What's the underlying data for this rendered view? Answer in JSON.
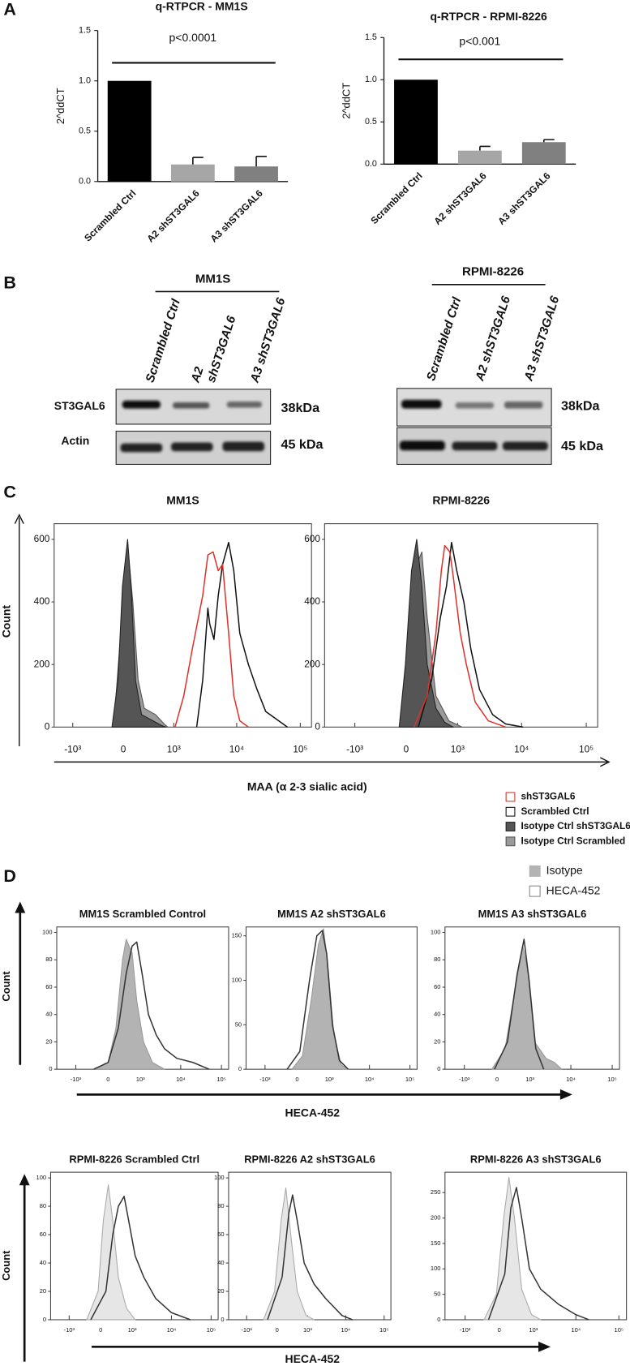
{
  "panel_labels": [
    "A",
    "B",
    "C",
    "D"
  ],
  "chart_data": [
    {
      "type": "bar",
      "title": "q-RTPCR -  MM1S",
      "y_label": "2^ddCT",
      "annotation": "p<0.0001",
      "categories": [
        "Scrambled Ctrl",
        "A2 shST3GAL6",
        "A3 shST3GAL6"
      ],
      "values": [
        1.0,
        0.17,
        0.15
      ],
      "errors": [
        0,
        0.07,
        0.1
      ],
      "colors": [
        "#000000",
        "#a6a6a6",
        "#808080"
      ],
      "ylim": [
        0,
        1.5
      ],
      "yticks": [
        {
          "value": 0,
          "label": "0.0"
        },
        0.5,
        {
          "value": 1,
          "label": "1.0"
        },
        1.5
      ]
    },
    {
      "type": "bar",
      "title": "q-RTPCR -  RPMI-8226",
      "y_label": "2^ddCT",
      "annotation": "p<0.001",
      "categories": [
        "Scrambled Ctrl",
        "A2 shST3GAL6",
        "A3 shST3GAL6"
      ],
      "values": [
        1.0,
        0.16,
        0.26
      ],
      "errors": [
        0,
        0.05,
        0.03
      ],
      "colors": [
        "#000000",
        "#a6a6a6",
        "#808080"
      ],
      "ylim": [
        0,
        1.5
      ],
      "yticks": [
        {
          "value": 0,
          "label": "0.0"
        },
        0.5,
        {
          "value": 1,
          "label": "1.0"
        },
        1.5
      ]
    },
    {
      "type": "line",
      "title": "MM1S",
      "xscale": "biexponential",
      "xlim": [
        -2000,
        150000
      ],
      "ylim": [
        0,
        650
      ],
      "xticks": [
        {
          "value": -1000,
          "label": "-10³"
        },
        0,
        {
          "value": 1000,
          "label": "10³"
        },
        {
          "value": 10000,
          "label": "10⁴"
        },
        {
          "value": 100000,
          "label": "10⁵"
        }
      ],
      "yticks": [
        0,
        200,
        400,
        600
      ],
      "series": [
        {
          "name": "shST3GAL6",
          "color": "#e0302a",
          "fill": null,
          "x": [
            1050,
            1455,
            1996,
            2920,
            3520,
            4250,
            5130,
            6000,
            7460,
            9000,
            11200,
            15300
          ],
          "values": [
            0,
            100,
            250,
            420,
            550,
            560,
            500,
            520,
            300,
            100,
            20,
            0
          ]
        },
        {
          "name": "Scrambled Ctrl",
          "color": "#111111",
          "fill": null,
          "x": [
            2340,
            2920,
            3520,
            3755,
            4385,
            5130,
            6000,
            7460,
            9000,
            11200,
            15300,
            20900,
            28600,
            45700,
            62700
          ],
          "values": [
            0,
            150,
            380,
            330,
            280,
            420,
            520,
            590,
            500,
            300,
            200,
            120,
            50,
            20,
            0
          ]
        },
        {
          "name": "Isotype Ctrl shST3GAL6",
          "color": "#222222",
          "fill": "#555555",
          "x": [
            -139,
            -63,
            -10,
            52,
            95,
            151,
            235,
            428,
            617,
            740
          ],
          "values": [
            0,
            150,
            450,
            600,
            450,
            150,
            40,
            20,
            5,
            0
          ]
        },
        {
          "name": "Isotype Ctrl Scrambled",
          "color": "#555555",
          "fill": "#9a9a9a",
          "x": [
            -117,
            -31,
            52,
            117,
            186,
            275,
            479,
            689,
            791
          ],
          "values": [
            0,
            300,
            580,
            400,
            150,
            60,
            40,
            10,
            0
          ]
        }
      ]
    },
    {
      "type": "line",
      "title": "RPMI-8226",
      "xscale": "biexponential",
      "xlim": [
        -3000,
        150000
      ],
      "ylim": [
        0,
        650
      ],
      "xticks": [
        {
          "value": -1000,
          "label": "-10³"
        },
        0,
        {
          "value": 1000,
          "label": "10³"
        },
        {
          "value": 10000,
          "label": "10⁴"
        },
        {
          "value": 100000,
          "label": "10⁵"
        }
      ],
      "yticks": [
        0,
        200,
        400,
        600
      ],
      "series": [
        {
          "name": "shST3GAL6",
          "color": "#e0302a",
          "fill": null,
          "x": [
            93,
            270,
            418,
            528,
            607,
            743,
            851,
            1105,
            1386,
            1904,
            3049,
            5676
          ],
          "values": [
            0,
            100,
            300,
            500,
            580,
            560,
            480,
            300,
            200,
            80,
            20,
            0
          ]
        },
        {
          "name": "Scrambled Ctrl",
          "color": "#111111",
          "fill": null,
          "x": [
            148,
            340,
            508,
            653,
            795,
            970,
            1260,
            1627,
            2231,
            3564,
            5676,
            10560
          ],
          "values": [
            0,
            150,
            350,
            450,
            590,
            500,
            400,
            250,
            120,
            40,
            10,
            0
          ]
        },
        {
          "name": "Isotype Ctrl shST3GAL6",
          "color": "#222222",
          "fill": "#555555",
          "x": [
            -83,
            -10,
            62,
            126,
            194,
            270,
            418,
            607,
            851
          ],
          "values": [
            0,
            200,
            500,
            600,
            450,
            200,
            60,
            15,
            0
          ]
        },
        {
          "name": "Isotype Ctrl Scrambled",
          "color": "#555555",
          "fill": "#9a9a9a",
          "x": [
            -41,
            41,
            126,
            194,
            270,
            418,
            719,
            1181
          ],
          "values": [
            0,
            250,
            520,
            560,
            350,
            100,
            20,
            0
          ]
        }
      ]
    },
    {
      "type": "line",
      "title": "MM1S Scrambled Control",
      "xscale": "biexponential",
      "xlim": [
        -3000,
        150000
      ],
      "ylim": [
        0,
        104
      ],
      "xticks": [
        {
          "value": -1000,
          "label": "-10³"
        },
        0,
        {
          "value": 1000,
          "label": "10³"
        },
        {
          "value": 10000,
          "label": "10⁴"
        },
        {
          "value": 100000,
          "label": "10⁵"
        }
      ],
      "yticks": [
        0,
        20,
        40,
        60,
        80,
        100
      ],
      "series": [
        {
          "name": "Isotype",
          "color": "#999999",
          "fill": "#b3b3b3",
          "x": [
            -300,
            0,
            150,
            300,
            400,
            600,
            800,
            1200,
            2000,
            4000
          ],
          "values": [
            0,
            5,
            30,
            80,
            95,
            85,
            50,
            20,
            5,
            0
          ]
        },
        {
          "name": "HECA-452",
          "color": "#333333",
          "fill": null,
          "x": [
            -300,
            0,
            200,
            400,
            600,
            800,
            1100,
            1600,
            2500,
            4000,
            8000,
            20000,
            50000
          ],
          "values": [
            0,
            5,
            30,
            70,
            90,
            93,
            70,
            40,
            25,
            15,
            8,
            5,
            0
          ]
        }
      ]
    },
    {
      "type": "line",
      "title": "MM1S A2 shST3GAL6",
      "xscale": "biexponential",
      "xlim": [
        -3000,
        150000
      ],
      "ylim": [
        0,
        160
      ],
      "xticks": [
        {
          "value": -1000,
          "label": "-10³"
        },
        0,
        {
          "value": 1000,
          "label": "10³"
        },
        {
          "value": 10000,
          "label": "10⁴"
        },
        {
          "value": 100000,
          "label": "10⁵"
        }
      ],
      "yticks": [
        0,
        50,
        100,
        150
      ],
      "series": [
        {
          "name": "Isotype",
          "color": "#999999",
          "fill": "#b3b3b3",
          "x": [
            -100,
            100,
            300,
            500,
            700,
            900,
            1300,
            2000,
            3000
          ],
          "values": [
            0,
            15,
            80,
            140,
            158,
            120,
            40,
            5,
            0
          ]
        },
        {
          "name": "HECA-452",
          "color": "#333333",
          "fill": null,
          "x": [
            -200,
            50,
            250,
            450,
            650,
            850,
            1200,
            1800,
            3000
          ],
          "values": [
            0,
            20,
            100,
            150,
            156,
            130,
            50,
            10,
            0
          ]
        }
      ]
    },
    {
      "type": "line",
      "title": "MM1S A3 shST3GAL6",
      "xscale": "biexponential",
      "xlim": [
        -3000,
        150000
      ],
      "ylim": [
        0,
        104
      ],
      "xticks": [
        {
          "value": -1000,
          "label": "-10³"
        },
        0,
        {
          "value": 1000,
          "label": "10³"
        },
        {
          "value": 10000,
          "label": "10⁴"
        },
        {
          "value": 100000,
          "label": "10⁵"
        }
      ],
      "yticks": [
        0,
        20,
        40,
        60,
        80,
        100
      ],
      "series": [
        {
          "name": "Isotype",
          "color": "#999999",
          "fill": "#b3b3b3",
          "x": [
            -100,
            150,
            400,
            650,
            900,
            1300,
            2500,
            4000,
            6000
          ],
          "values": [
            0,
            15,
            60,
            90,
            70,
            20,
            8,
            5,
            0
          ]
        },
        {
          "name": "HECA-452",
          "color": "#333333",
          "fill": null,
          "x": [
            -50,
            200,
            450,
            700,
            950,
            1400,
            2200
          ],
          "values": [
            0,
            20,
            70,
            95,
            65,
            15,
            0
          ]
        }
      ]
    },
    {
      "type": "line",
      "title": "RPMI-8226 Scrambled Ctrl",
      "xscale": "biexponential",
      "xlim": [
        -3000,
        150000
      ],
      "ylim": [
        0,
        104
      ],
      "xticks": [
        {
          "value": -1000,
          "label": "-10³"
        },
        0,
        {
          "value": 1000,
          "label": "10³"
        },
        {
          "value": 10000,
          "label": "10⁴"
        },
        {
          "value": 100000,
          "label": "10⁵"
        }
      ],
      "yticks": [
        0,
        20,
        40,
        60,
        80,
        100
      ],
      "series": [
        {
          "name": "Isotype",
          "color": "#aaaaaa",
          "fill": "#e6e6e6",
          "x": [
            -300,
            -50,
            50,
            150,
            250,
            400,
            700,
            1200
          ],
          "values": [
            0,
            20,
            70,
            95,
            70,
            30,
            8,
            0
          ]
        },
        {
          "name": "HECA-452",
          "color": "#333333",
          "fill": null,
          "x": [
            -200,
            100,
            250,
            400,
            600,
            800,
            1200,
            2000,
            4000,
            10000,
            30000
          ],
          "values": [
            0,
            20,
            60,
            80,
            87,
            70,
            45,
            30,
            15,
            5,
            0
          ]
        }
      ]
    },
    {
      "type": "line",
      "title": "RPMI-8226 A2 shST3GAL6",
      "xscale": "biexponential",
      "xlim": [
        -3000,
        150000
      ],
      "ylim": [
        0,
        104
      ],
      "xticks": [
        {
          "value": -1000,
          "label": "-10³"
        },
        0,
        {
          "value": 1000,
          "label": "10³"
        },
        {
          "value": 10000,
          "label": "10⁴"
        },
        {
          "value": 100000,
          "label": "10⁵"
        }
      ],
      "yticks": [
        0,
        20,
        40,
        60,
        80,
        100
      ],
      "series": [
        {
          "name": "Isotype",
          "color": "#aaaaaa",
          "fill": "#e6e6e6",
          "x": [
            -300,
            -50,
            80,
            180,
            300,
            500,
            900,
            1500
          ],
          "values": [
            0,
            20,
            70,
            93,
            60,
            20,
            3,
            0
          ]
        },
        {
          "name": "HECA-452",
          "color": "#333333",
          "fill": null,
          "x": [
            -200,
            100,
            250,
            350,
            500,
            800,
            1500,
            3000,
            8000,
            15000
          ],
          "values": [
            0,
            30,
            75,
            88,
            70,
            40,
            25,
            15,
            3,
            0
          ]
        }
      ]
    },
    {
      "type": "line",
      "title": "RPMI-8226 A3 shST3GAL6",
      "xscale": "biexponential",
      "xlim": [
        -3000,
        150000
      ],
      "ylim": [
        0,
        290
      ],
      "xticks": [
        {
          "value": -1000,
          "label": "-10³"
        },
        0,
        {
          "value": 1000,
          "label": "10³"
        },
        {
          "value": 10000,
          "label": "10⁴"
        },
        {
          "value": 100000,
          "label": "10⁵"
        }
      ],
      "yticks": [
        0,
        50,
        100,
        150,
        200,
        250
      ],
      "series": [
        {
          "name": "Isotype",
          "color": "#aaaaaa",
          "fill": "#e6e6e6",
          "x": [
            -300,
            -50,
            80,
            180,
            300,
            500,
            900,
            1500
          ],
          "values": [
            0,
            50,
            200,
            280,
            200,
            60,
            10,
            0
          ]
        },
        {
          "name": "HECA-452",
          "color": "#333333",
          "fill": null,
          "x": [
            -200,
            100,
            220,
            350,
            500,
            800,
            1500,
            4000,
            10000,
            20000
          ],
          "values": [
            0,
            90,
            220,
            260,
            200,
            100,
            60,
            30,
            10,
            0
          ]
        }
      ]
    }
  ],
  "blots": {
    "left": {
      "title": "MM1S",
      "lanes": [
        [
          "Scrambled Ctrl"
        ],
        [
          "A2",
          "shST3GAL6"
        ],
        [
          "A3 shST3GAL6"
        ]
      ],
      "sizes": [
        "38kDa",
        "45 kDa"
      ]
    },
    "right": {
      "title": "RPMI-8226",
      "lanes": [
        [
          "Scrambled Ctrl"
        ],
        [
          "A2 shST3GAL6"
        ],
        [
          "A3 shST3GAL6"
        ]
      ],
      "sizes": [
        "38kDa",
        "45 kDa"
      ]
    },
    "rows": [
      "ST3GAL6",
      "Actin"
    ]
  },
  "panel_c": {
    "y_label": "Count",
    "x_label": "MAA  (α 2-3 sialic acid)"
  },
  "panel_d": {
    "rows": [
      {
        "y_label": "Count",
        "x_label": "HECA-452"
      },
      {
        "y_label": "Count",
        "x_label": "HECA-452"
      }
    ]
  }
}
